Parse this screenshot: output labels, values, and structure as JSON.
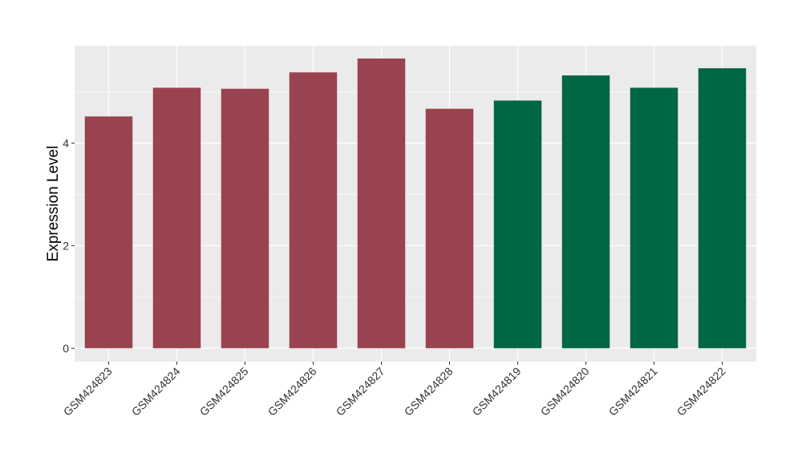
{
  "chart_data": {
    "type": "bar",
    "title": "",
    "xlabel": "",
    "ylabel": "Expression Level",
    "categories": [
      "GSM424823",
      "GSM424824",
      "GSM424825",
      "GSM424826",
      "GSM424827",
      "GSM424828",
      "GSM424819",
      "GSM424820",
      "GSM424821",
      "GSM424822"
    ],
    "values": [
      4.52,
      5.08,
      5.06,
      5.38,
      5.65,
      4.67,
      4.83,
      5.32,
      5.08,
      5.46
    ],
    "bar_colors": [
      "#9A4350",
      "#9A4350",
      "#9A4350",
      "#9A4350",
      "#9A4350",
      "#9A4350",
      "#006644",
      "#006644",
      "#006644",
      "#006644"
    ],
    "ylim": [
      -0.26,
      5.9
    ],
    "yticks": [
      0,
      2,
      4
    ],
    "ytick_labels": [
      "0",
      "2",
      "4"
    ],
    "grid": true,
    "legend": "none",
    "panel_background": "#EBEBEB",
    "grid_color": "#FFFFFF"
  }
}
